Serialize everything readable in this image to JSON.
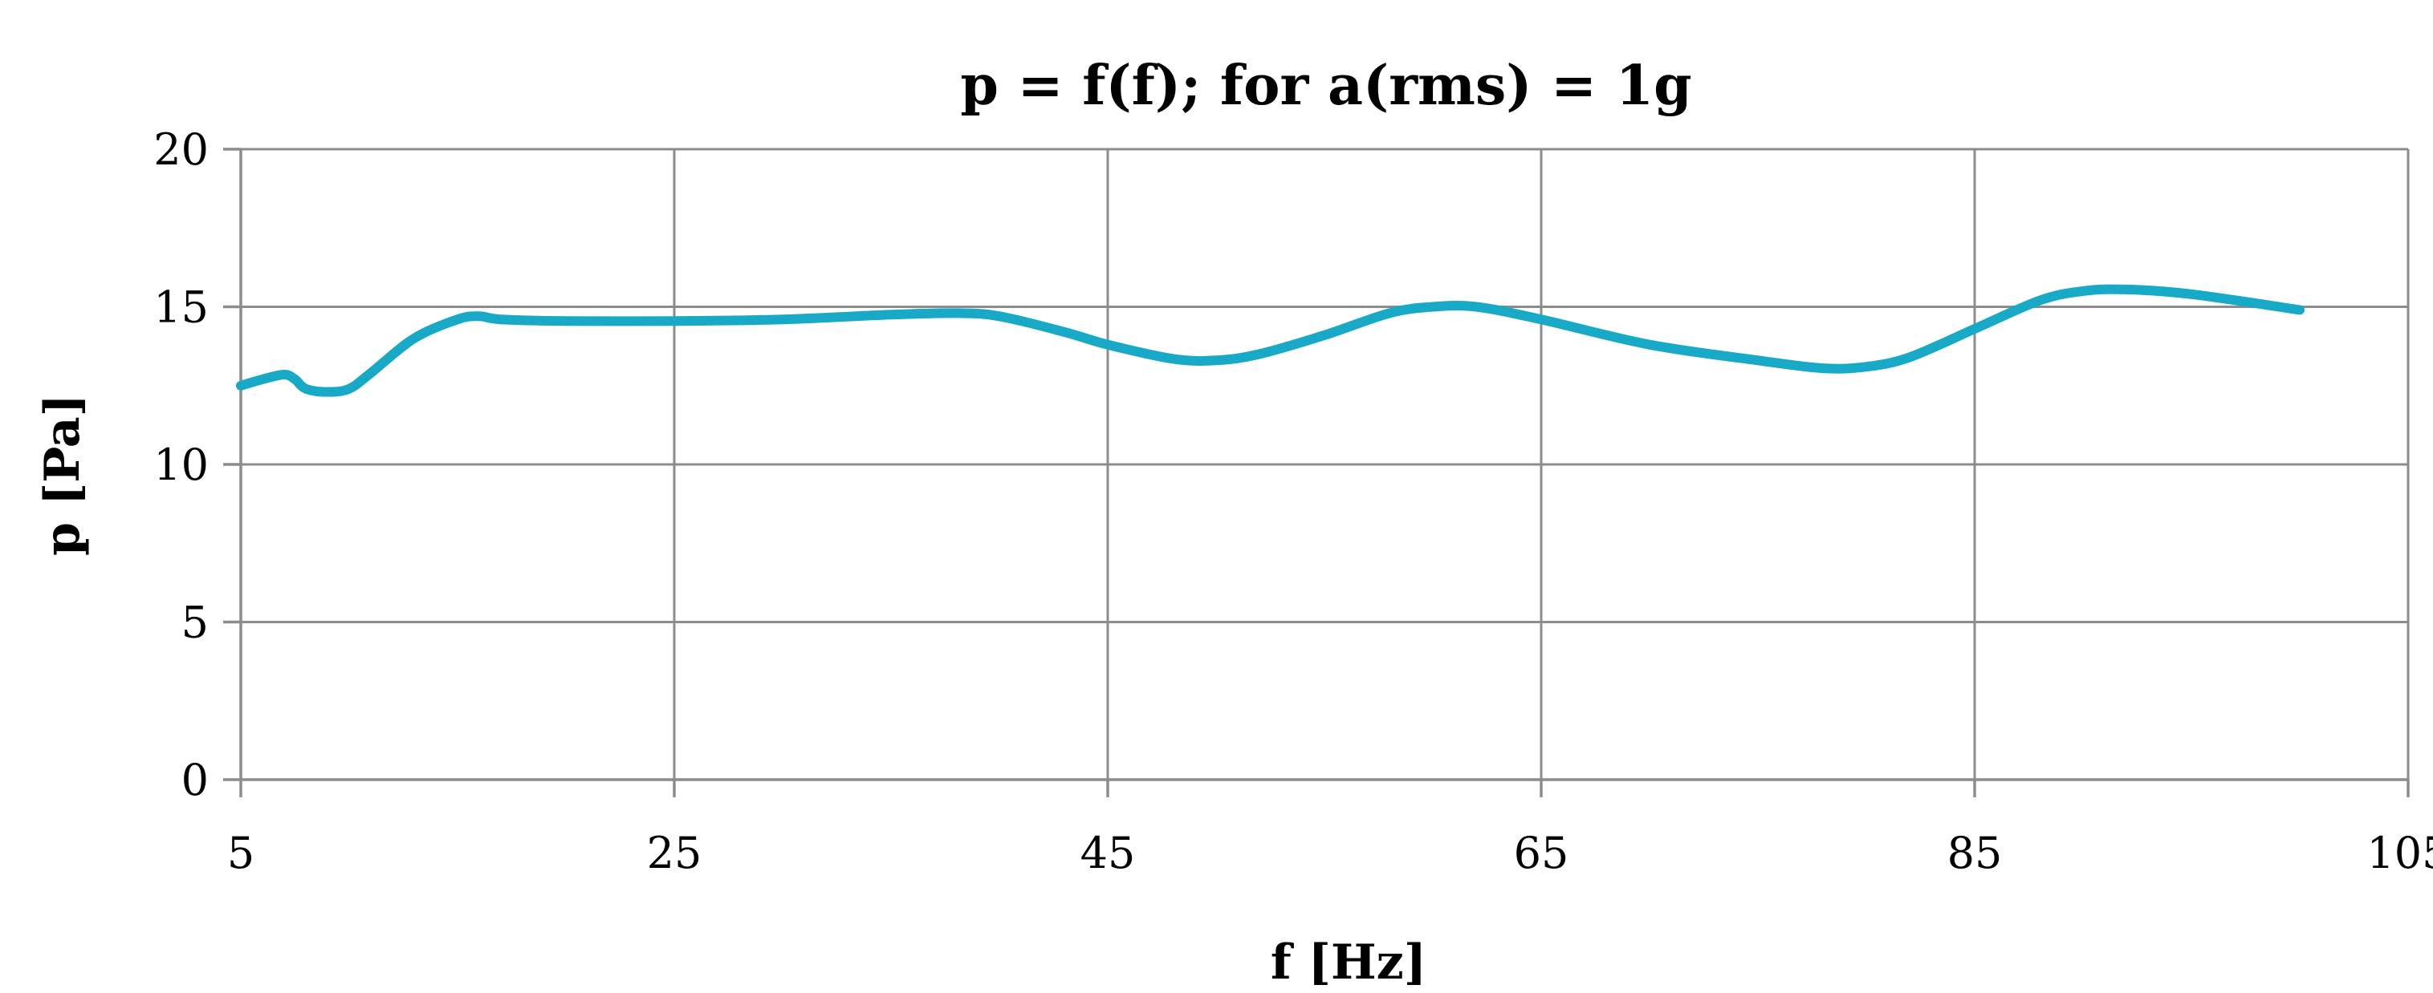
{
  "chart_data": {
    "type": "line",
    "title": "p = f(f); for a(rms) = 1g",
    "xlabel": "f [Hz]",
    "ylabel": "p [Pa]",
    "xlim": [
      5,
      105
    ],
    "ylim": [
      0,
      20
    ],
    "x_ticks": [
      5,
      25,
      45,
      65,
      85,
      105
    ],
    "y_ticks": [
      0,
      5,
      10,
      15,
      20
    ],
    "grid": true,
    "legend": "none",
    "series": [
      {
        "color": "#17a9c6",
        "x": [
          5,
          6,
          7,
          7.5,
          8,
          9,
          10,
          11,
          13,
          15,
          16,
          17,
          20,
          25,
          30,
          35,
          38,
          40,
          43,
          45,
          48,
          50,
          52,
          55,
          58,
          60,
          62,
          65,
          70,
          75,
          78,
          80,
          82,
          85,
          88,
          90,
          92,
          95,
          100
        ],
        "y": [
          12.5,
          12.7,
          12.85,
          12.7,
          12.4,
          12.3,
          12.4,
          12.9,
          14.0,
          14.6,
          14.7,
          14.6,
          14.55,
          14.55,
          14.6,
          14.75,
          14.8,
          14.7,
          14.2,
          13.8,
          13.35,
          13.3,
          13.5,
          14.1,
          14.8,
          15.0,
          15.0,
          14.6,
          13.8,
          13.3,
          13.05,
          13.1,
          13.4,
          14.3,
          15.2,
          15.5,
          15.55,
          15.4,
          14.9
        ]
      }
    ]
  }
}
